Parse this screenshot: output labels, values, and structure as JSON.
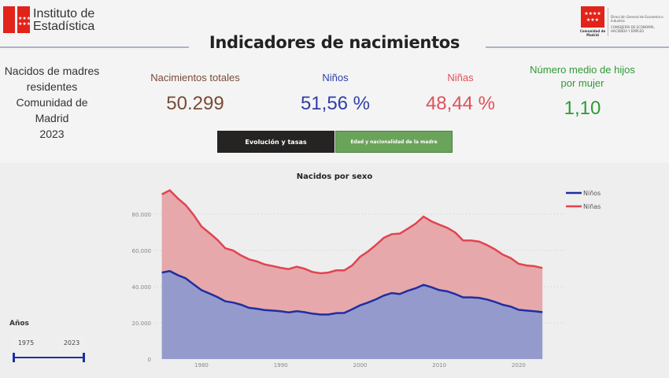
{
  "header": {
    "logo_left": "Instituto de Estadística",
    "logo_left_lines": [
      "Instituto de",
      "Estadística"
    ],
    "logo_right_name": "Comunidad de Madrid",
    "logo_right_direccion": "Dirección General de Economía e Industria",
    "logo_right_consejeria": "CONSEJERÍA DE ECONOMÍA, HACIENDA Y EMPLEO",
    "title": "Indicadores de nacimientos"
  },
  "kpis": {
    "context_lines": [
      "Nacidos de madres",
      "residentes",
      "Comunidad de Madrid",
      "2023"
    ],
    "total": {
      "label": "Nacimientos totales",
      "value": "50.299",
      "color": "#7a4a35"
    },
    "ninos": {
      "label": "Niños",
      "value": "51,56 %",
      "color": "#2f3fa8"
    },
    "ninas": {
      "label": "Niñas",
      "value": "48,44 %",
      "color": "#e0505a"
    },
    "hijos": {
      "label_lines": [
        "Número medio de hijos",
        "por mujer"
      ],
      "value": "1,10",
      "color": "#2f9a35"
    }
  },
  "tabs": [
    {
      "label": "Evolución y tasas",
      "active": true,
      "bg": "#252423"
    },
    {
      "label": "Edad y nacionalidad de la madre",
      "active": false,
      "bg": "#6aa35a"
    }
  ],
  "slicer": {
    "title": "Años",
    "from": "1975",
    "to": "2023"
  },
  "chart_data": {
    "type": "area",
    "stacked": true,
    "title": "Nacidos por sexo",
    "xlabel": "",
    "ylabel": "",
    "x": [
      1975,
      1976,
      1977,
      1978,
      1979,
      1980,
      1981,
      1982,
      1983,
      1984,
      1985,
      1986,
      1987,
      1988,
      1989,
      1990,
      1991,
      1992,
      1993,
      1994,
      1995,
      1996,
      1997,
      1998,
      1999,
      2000,
      2001,
      2002,
      2003,
      2004,
      2005,
      2006,
      2007,
      2008,
      2009,
      2010,
      2011,
      2012,
      2013,
      2014,
      2015,
      2016,
      2017,
      2018,
      2019,
      2020,
      2021,
      2022,
      2023
    ],
    "x_ticks": [
      "1980",
      "1990",
      "2000",
      "2010",
      "2020"
    ],
    "y_ticks": [
      "0",
      "20.000",
      "40.000",
      "60.000",
      "80.000"
    ],
    "ylim": [
      0,
      95000
    ],
    "grid": true,
    "legend": "top-right",
    "series": [
      {
        "name": "Niños",
        "color": "#1f2fa0",
        "fill": "#949bcc",
        "values": [
          47800,
          48600,
          46400,
          44600,
          41300,
          38100,
          36200,
          34300,
          31900,
          31200,
          30000,
          28300,
          27800,
          27100,
          26800,
          26400,
          25800,
          26500,
          25900,
          25100,
          24600,
          24600,
          25400,
          25500,
          27500,
          29700,
          31200,
          33000,
          35100,
          36500,
          35900,
          37700,
          39100,
          41000,
          39700,
          38100,
          37400,
          35900,
          34100,
          34100,
          33800,
          32900,
          31600,
          30000,
          29000,
          27200,
          26800,
          26400,
          25934
        ]
      },
      {
        "name": "Niñas",
        "color": "#e04550",
        "fill": "#e6a8ab",
        "values": [
          43200,
          44600,
          42400,
          40500,
          38400,
          35100,
          33400,
          31600,
          29300,
          28700,
          27200,
          26800,
          26100,
          25100,
          24600,
          24000,
          23900,
          24500,
          24000,
          23000,
          22800,
          23200,
          23600,
          23500,
          24200,
          26800,
          28200,
          30000,
          31900,
          32500,
          33400,
          34200,
          35700,
          37700,
          36400,
          36100,
          35100,
          34000,
          31400,
          31400,
          31100,
          30100,
          29000,
          27700,
          26800,
          25400,
          24900,
          24900,
          24365
        ]
      }
    ]
  }
}
